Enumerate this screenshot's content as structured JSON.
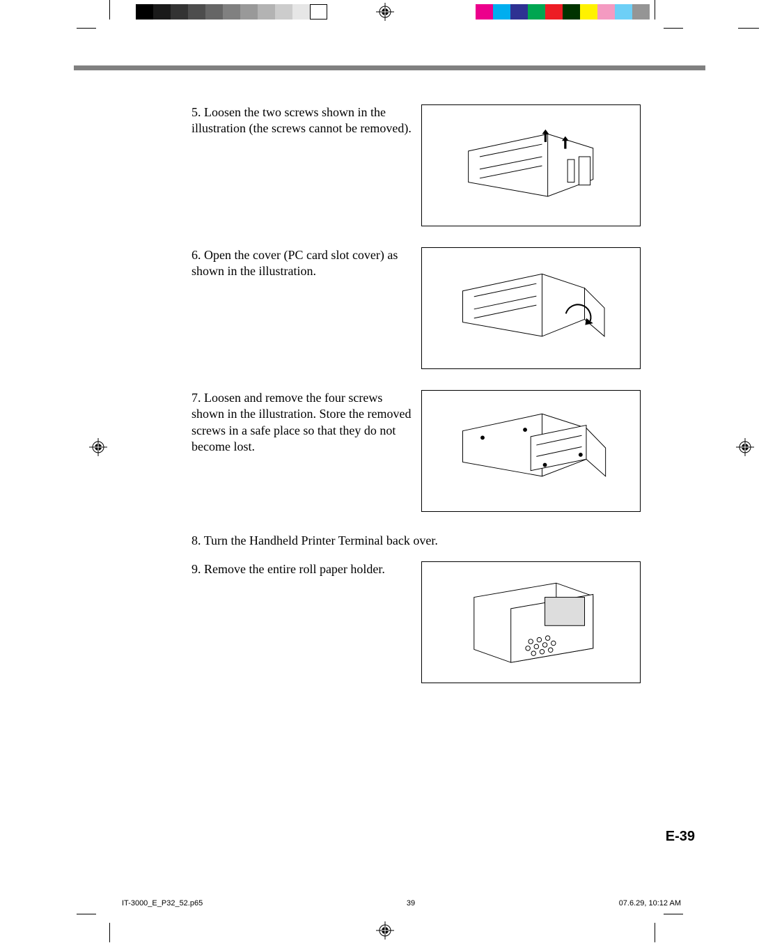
{
  "steps": [
    {
      "number": "5.",
      "text": "Loosen the two screws shown in the illustration (the screws cannot be removed).",
      "has_figure": true
    },
    {
      "number": "6.",
      "text": "Open the cover (PC card slot cover) as shown in the illustration.",
      "has_figure": true
    },
    {
      "number": "7.",
      "text": "Loosen and remove the four screws shown in the illustration.  Store the removed screws in a safe place so that they do not become lost.",
      "has_figure": true
    },
    {
      "number": "8.",
      "text": "Turn the Handheld Printer Terminal back over.",
      "has_figure": false
    },
    {
      "number": "9.",
      "text": "Remove the entire roll paper holder.",
      "has_figure": true
    }
  ],
  "page_number": "E-39",
  "footer": {
    "file": "IT-3000_E_P32_52.p65",
    "page": "39",
    "timestamp": "07.6.29, 10:12 AM"
  },
  "gray_scale": [
    "#000000",
    "#1a1a1a",
    "#333333",
    "#4d4d4d",
    "#666666",
    "#808080",
    "#999999",
    "#b3b3b3",
    "#cccccc",
    "#e6e6e6",
    "#ffffff"
  ],
  "color_scale": [
    "#ec008c",
    "#00aeef",
    "#2e3192",
    "#00a651",
    "#ed1c24",
    "#003300",
    "#fff200",
    "#f49ac1",
    "#6dcff6",
    "#959595"
  ],
  "header_bar_color": "#808080"
}
